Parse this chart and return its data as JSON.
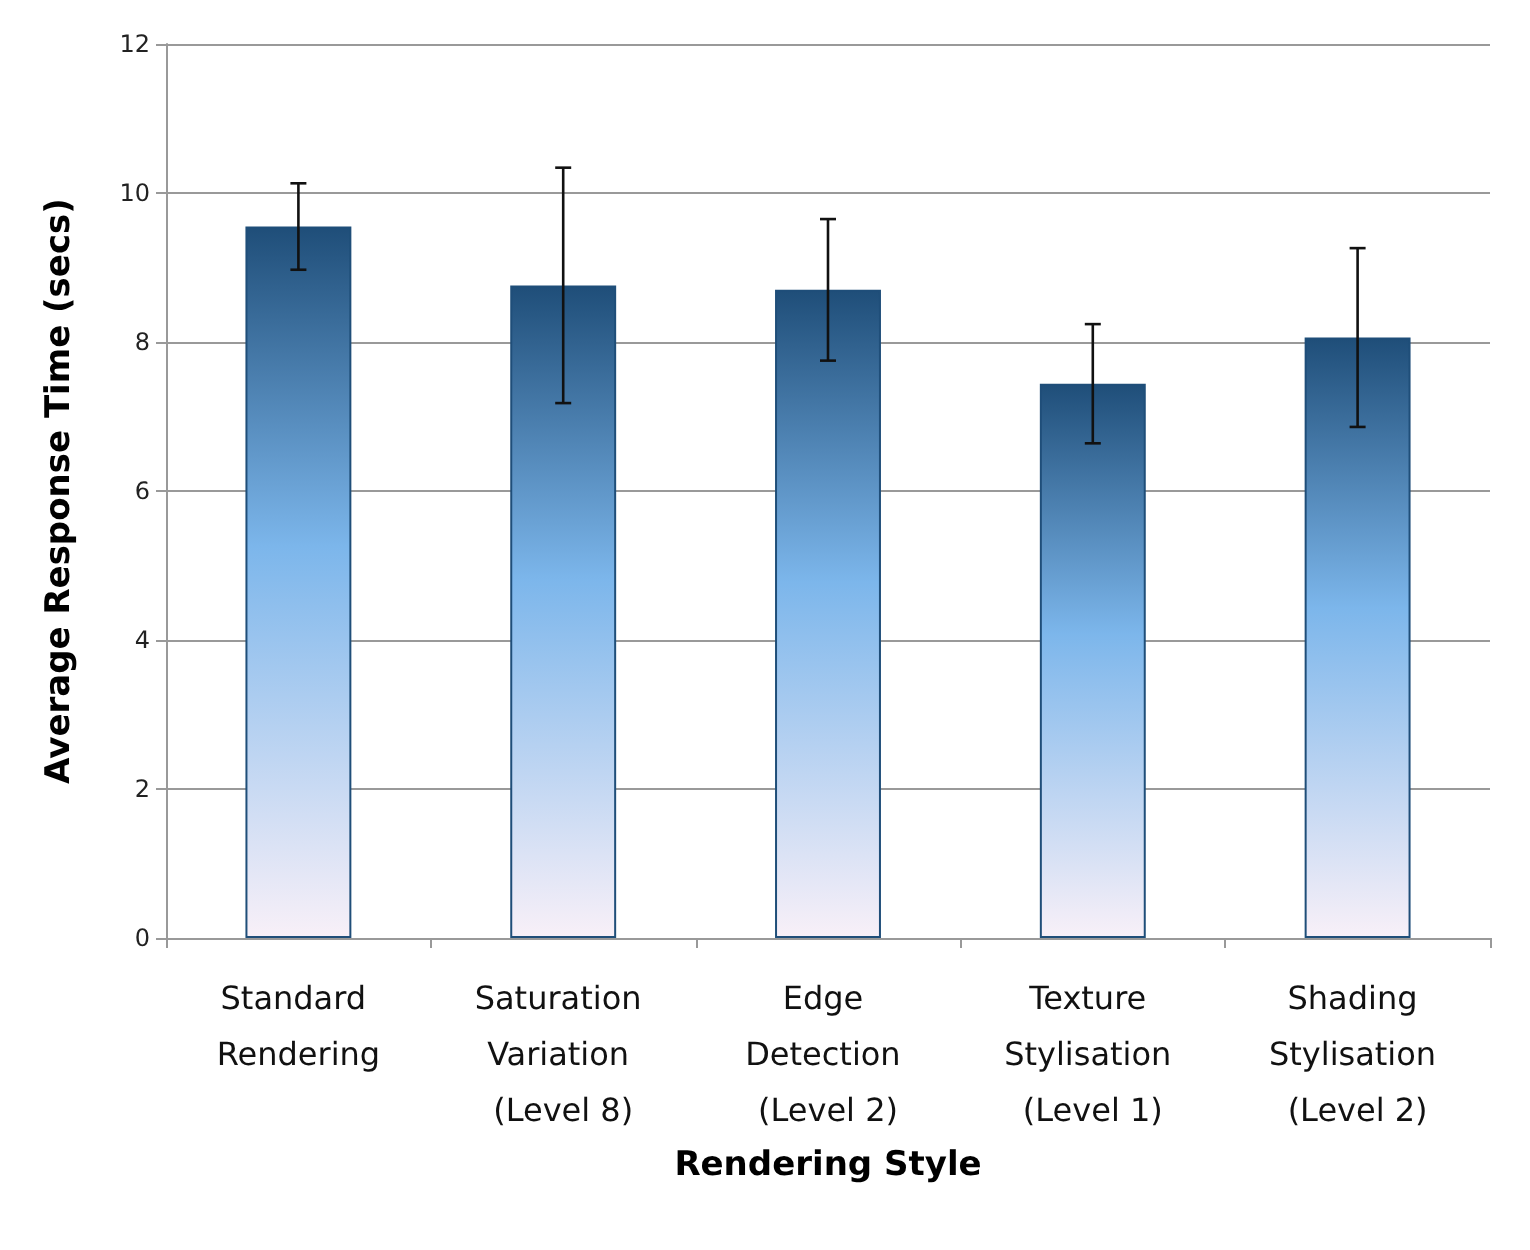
{
  "chart_data": {
    "type": "bar",
    "xlabel": "Rendering Style",
    "ylabel": "Average Response Time (secs)",
    "categories": [
      "Standard Rendering",
      "Saturation Variation (Level 8)",
      "Edge Detection (Level 2)",
      "Texture Stylisation (Level 1)",
      "Shading Stylisation (Level 2)"
    ],
    "values": [
      9.55,
      8.76,
      8.7,
      7.44,
      8.06
    ],
    "errors": [
      0.58,
      1.58,
      0.95,
      0.8,
      1.2
    ],
    "color": "#1f4e79",
    "ylim": [
      0,
      12
    ],
    "yticks": [
      0,
      2,
      4,
      6,
      8,
      10,
      12
    ],
    "grid": "y"
  }
}
